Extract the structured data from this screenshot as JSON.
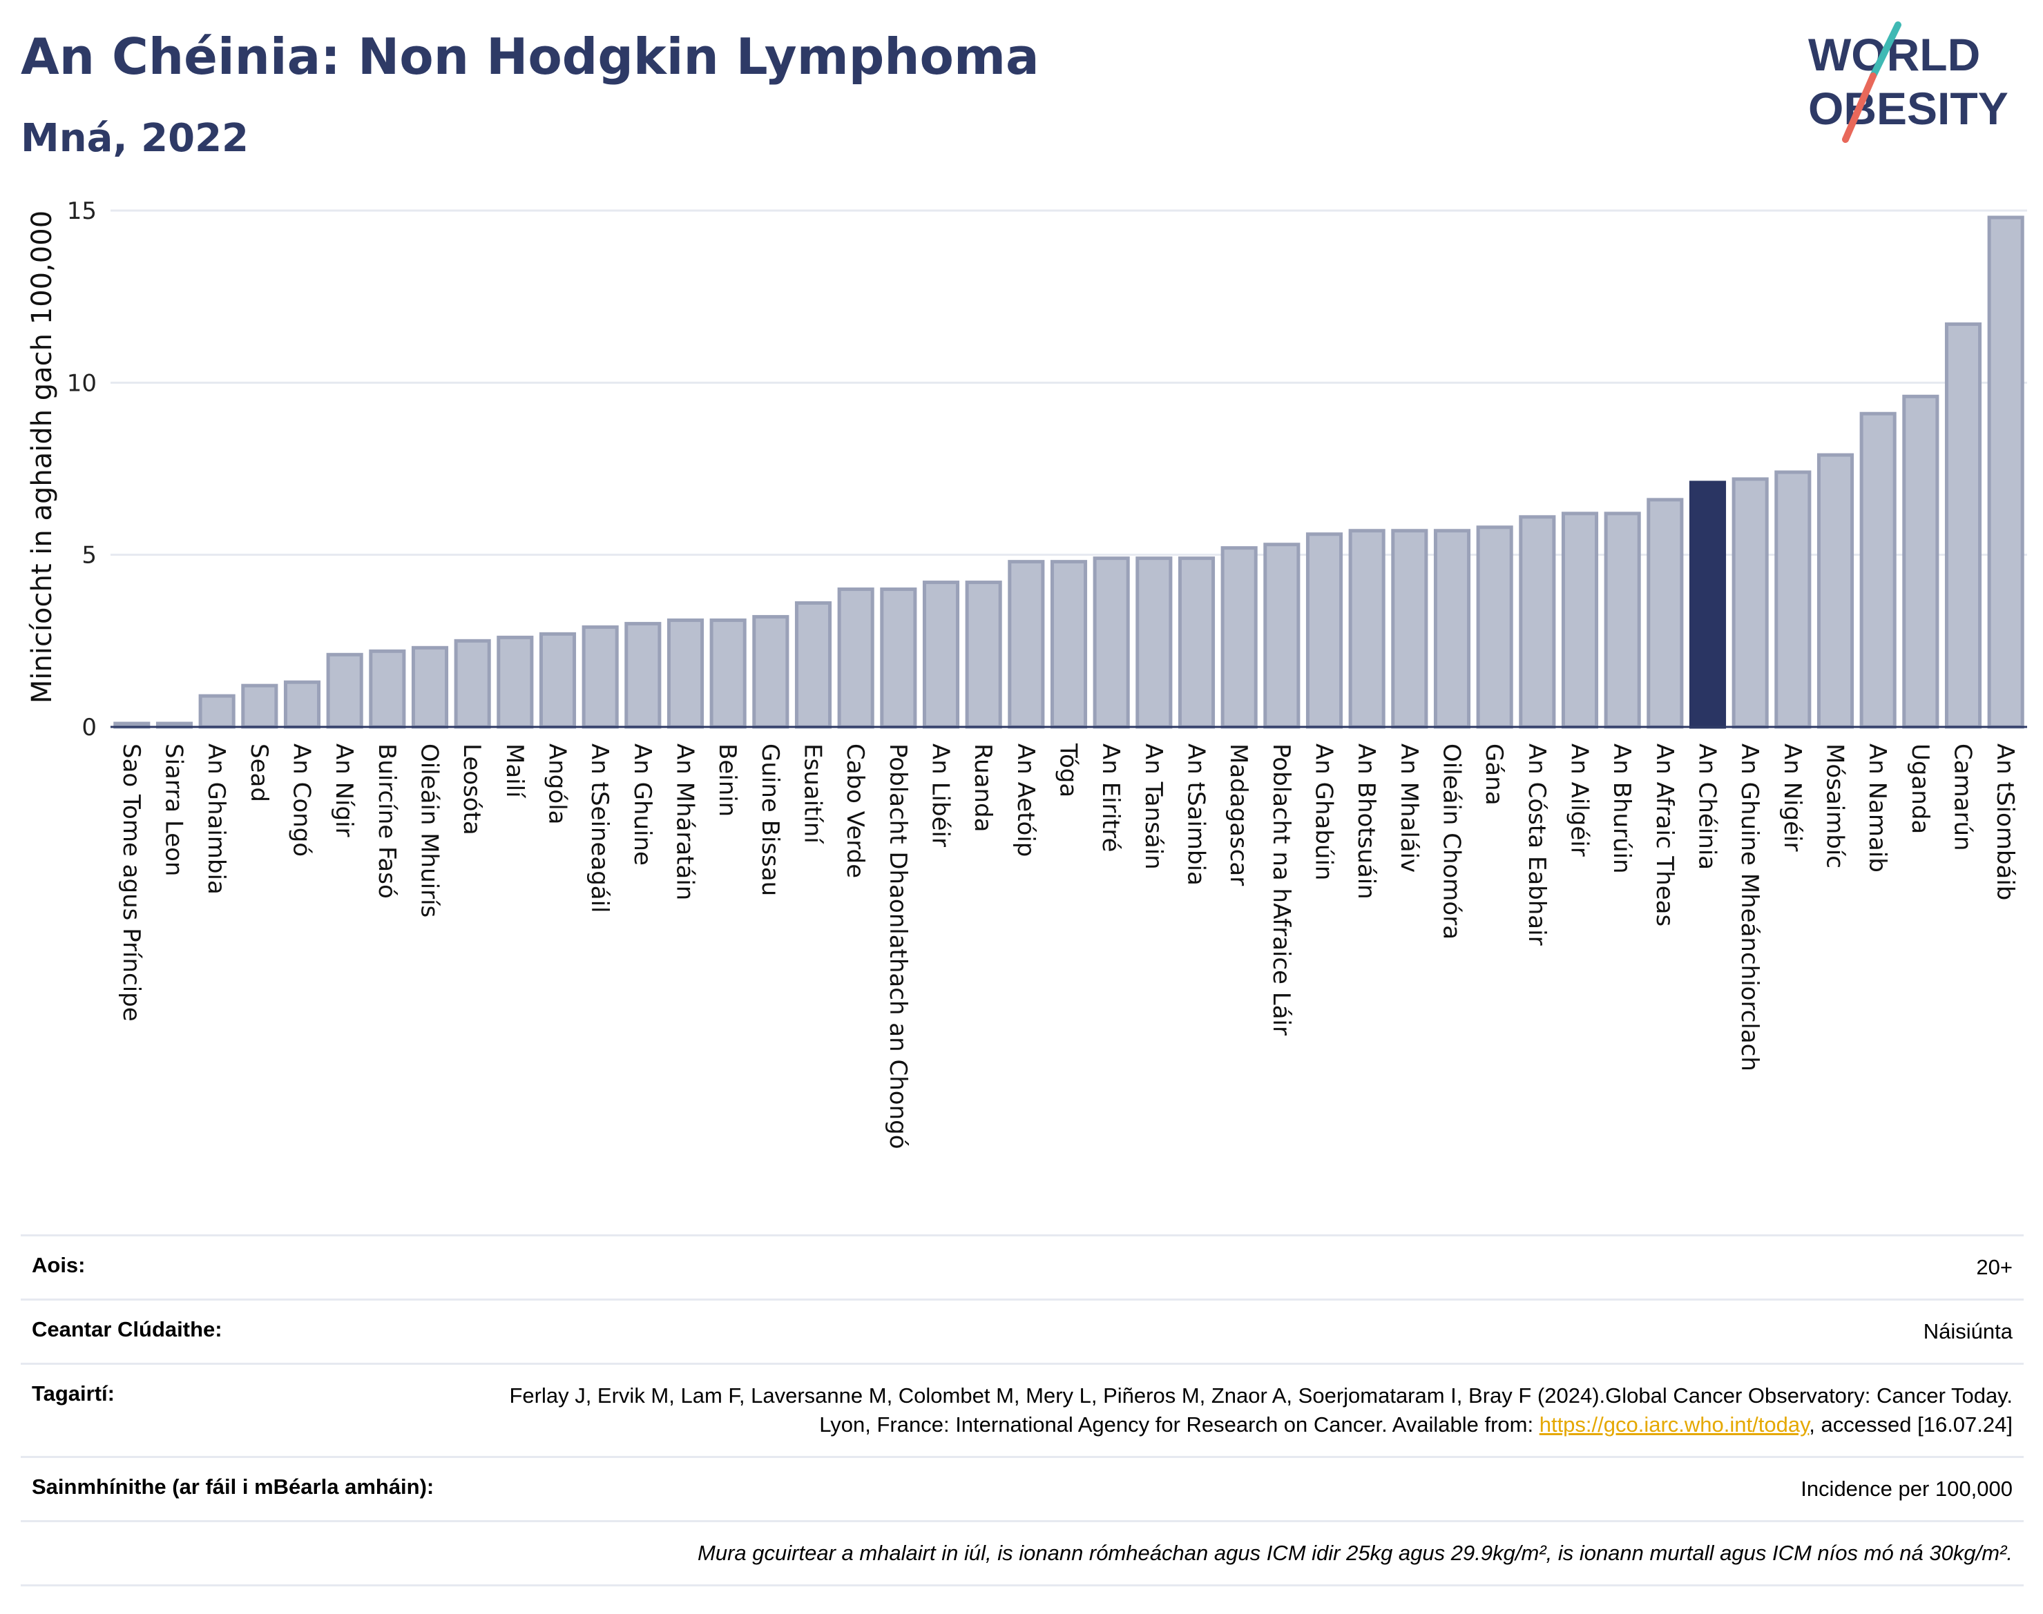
{
  "header": {
    "title": "An Chéinia: Non Hodgkin Lymphoma",
    "subtitle": "Mná, 2022"
  },
  "logo": {
    "line1": "WORLD",
    "line2": "OBESITY",
    "colors": {
      "text": "#2e3a66",
      "slash_top": "#3fb9b4",
      "slash_bottom": "#e8685a"
    }
  },
  "colors": {
    "bar": "#b9bfcf",
    "bar_stroke": "#9aa1b8",
    "highlight": "#2a3563",
    "grid": "#e6e9f0",
    "baseline": "#2e3a66"
  },
  "chart_data": {
    "type": "bar",
    "ylabel": "Minicíocht in aghaidh gach 100,000",
    "ylim": [
      0,
      15
    ],
    "yticks": [
      0,
      5,
      10,
      15
    ],
    "grid": true,
    "highlight": "An Chéinia",
    "categories": [
      "Sao Tome agus Príncipe",
      "Siarra Leon",
      "An Ghaimbia",
      "Sead",
      "An Congó",
      "An Nígir",
      "Buircíne Fasó",
      "Oileáin Mhuirís",
      "Leosóta",
      "Mailí",
      "Angóla",
      "An tSeineagáil",
      "An Ghuine",
      "An Mháratáin",
      "Beinin",
      "Guine Bissau",
      "Esuaitíní",
      "Cabo Verde",
      "Poblacht Dhaonlathach an Chongó",
      "An Libéir",
      "Ruanda",
      "An Aetóip",
      "Tóga",
      "An Eiritré",
      "An Tansáin",
      "An tSaimbia",
      "Madagascar",
      "Poblacht na hAfraice Láir",
      "An Ghabúin",
      "An Bhotsuáin",
      "An Mhaláiv",
      "Oileáin Chomóra",
      "Gána",
      "An Cósta Eabhair",
      "An Ailgéir",
      "An Bhurúin",
      "An Afraic Theas",
      "An Chéinia",
      "An Ghuine Mheánchiorclach",
      "An Nigéir",
      "Mósaimbíc",
      "An Namaib",
      "Uganda",
      "Camarún",
      "An tSiombáib"
    ],
    "values": [
      0.1,
      0.1,
      0.9,
      1.2,
      1.3,
      2.1,
      2.2,
      2.3,
      2.5,
      2.6,
      2.7,
      2.9,
      3.0,
      3.1,
      3.1,
      3.2,
      3.6,
      4.0,
      4.0,
      4.2,
      4.2,
      4.8,
      4.8,
      4.9,
      4.9,
      4.9,
      5.2,
      5.3,
      5.6,
      5.7,
      5.7,
      5.7,
      5.8,
      6.1,
      6.2,
      6.2,
      6.6,
      7.1,
      7.2,
      7.4,
      7.9,
      9.1,
      9.6,
      11.7,
      14.8
    ]
  },
  "info": {
    "rows": [
      {
        "key": "Aois:",
        "value": "20+"
      },
      {
        "key": "Ceantar Clúdaithe:",
        "value": "Náisiúnta"
      },
      {
        "key": "Tagairtí:",
        "value_pre": "Ferlay J, Ervik M, Lam F, Laversanne M, Colombet M, Mery L, Piñeros M, Znaor A, Soerjomataram I, Bray F (2024).Global Cancer Observatory: Cancer Today. Lyon, France: International Agency for Research on Cancer. Available from: ",
        "link": "https://gco.iarc.who.int/today",
        "value_post": ", accessed [16.07.24]"
      },
      {
        "key": "Sainmhínithe (ar fáil i mBéarla amháin):",
        "value": "Incidence per 100,000"
      }
    ],
    "note": "Mura gcuirtear a mhalairt in iúl, is ionann rómheáchan agus ICM idir 25kg agus 29.9kg/m², is ionann murtall agus ICM níos mó ná 30kg/m²."
  }
}
